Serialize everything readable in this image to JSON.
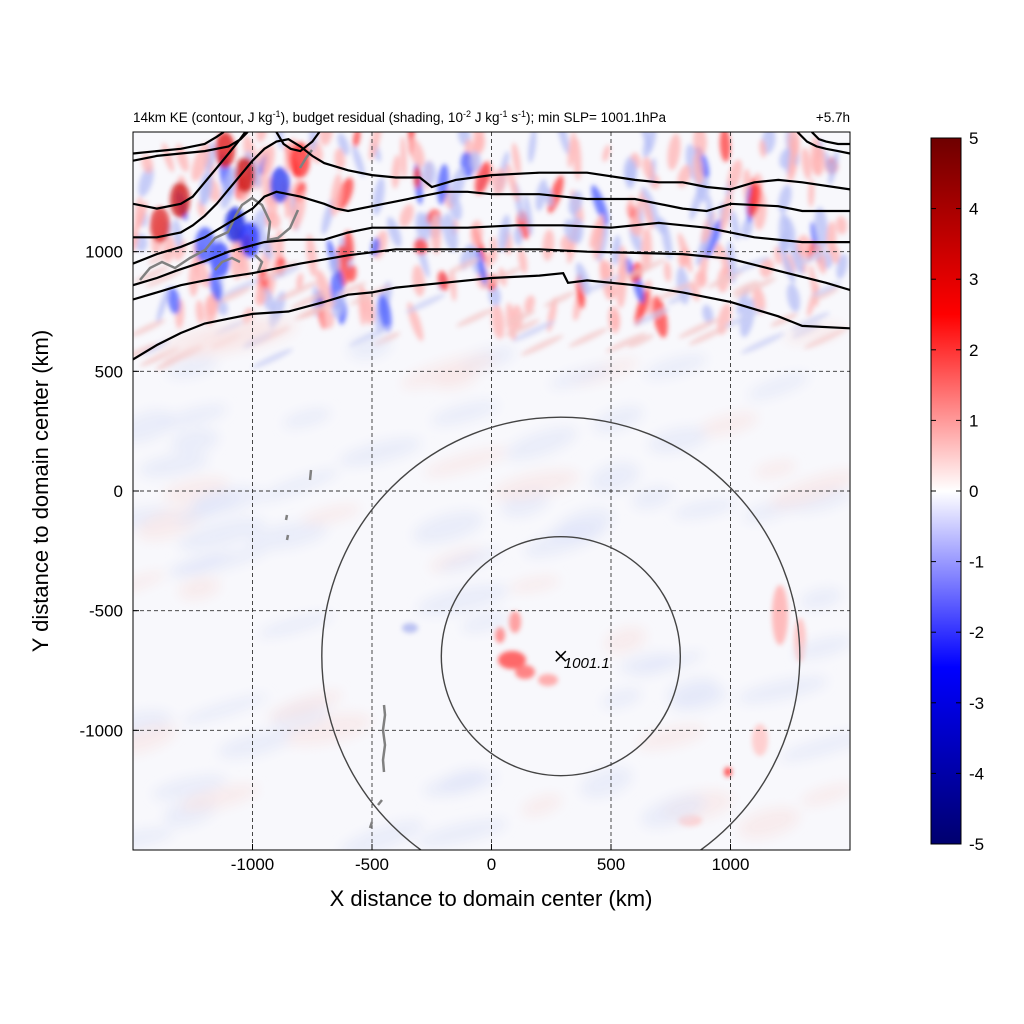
{
  "chart_data": {
    "type": "heatmap",
    "title_left": "14km KE (contour, J kg-1), budget residual (shading, 10-2 J kg-1 s-1); min SLP= 1001.1hPa",
    "title_parts": {
      "a": "14km KE (contour, J kg",
      "a_sup": "-1",
      "b": "), budget residual (shading, 10",
      "b_sup": "-2",
      "c": " J kg",
      "c_sup": "-1",
      "d": " s",
      "d_sup": "-1",
      "e": "); min SLP= 1001.1hPa"
    },
    "title_right": "+5.7h",
    "xlabel": "X distance to domain center (km)",
    "ylabel": "Y distance to domain center (km)",
    "xlim": [
      -1500,
      1500
    ],
    "ylim": [
      -1500,
      1500
    ],
    "xticks": [
      -1000,
      -500,
      0,
      500,
      1000
    ],
    "yticks": [
      -1000,
      -500,
      0,
      500,
      1000
    ],
    "grid": true,
    "colorbar": {
      "min": -5,
      "max": 5,
      "ticks": [
        5,
        4,
        3,
        2,
        1,
        0,
        -1,
        -2,
        -3,
        -4,
        -5
      ],
      "colors": [
        "#00006e",
        "#0000ff",
        "#ffffff",
        "#ff0000",
        "#6e0000"
      ]
    },
    "center_marker": {
      "x": 290,
      "y": -690,
      "label": "1001.1"
    },
    "range_rings_km": [
      500,
      1000
    ],
    "ke_contours": [
      [
        [
          -1500,
          550
        ],
        [
          -1400,
          610
        ],
        [
          -1300,
          660
        ],
        [
          -1200,
          700
        ],
        [
          -1100,
          720
        ],
        [
          -1000,
          740
        ],
        [
          -850,
          750
        ],
        [
          -700,
          790
        ],
        [
          -600,
          820
        ],
        [
          -500,
          830
        ],
        [
          -400,
          850
        ],
        [
          -200,
          870
        ],
        [
          0,
          890
        ],
        [
          200,
          900
        ],
        [
          300,
          910
        ],
        [
          320,
          870
        ],
        [
          400,
          880
        ],
        [
          600,
          860
        ],
        [
          800,
          830
        ],
        [
          1000,
          790
        ],
        [
          1200,
          730
        ],
        [
          1300,
          690
        ],
        [
          1500,
          680
        ]
      ],
      [
        [
          -1500,
          800
        ],
        [
          -1400,
          830
        ],
        [
          -1300,
          860
        ],
        [
          -1200,
          880
        ],
        [
          -1000,
          910
        ],
        [
          -800,
          950
        ],
        [
          -600,
          985
        ],
        [
          -400,
          1010
        ],
        [
          -200,
          1010
        ],
        [
          0,
          1010
        ],
        [
          200,
          1010
        ],
        [
          400,
          1000
        ],
        [
          600,
          995
        ],
        [
          800,
          990
        ],
        [
          1000,
          970
        ],
        [
          1200,
          920
        ],
        [
          1400,
          870
        ],
        [
          1500,
          840
        ]
      ],
      [
        [
          -1500,
          860
        ],
        [
          -1400,
          890
        ],
        [
          -1320,
          920
        ],
        [
          -1200,
          960
        ],
        [
          -1100,
          1000
        ],
        [
          -950,
          1040
        ],
        [
          -850,
          1050
        ],
        [
          -700,
          1050
        ],
        [
          -600,
          1080
        ],
        [
          -500,
          1100
        ],
        [
          -300,
          1100
        ],
        [
          -100,
          1100
        ],
        [
          100,
          1110
        ],
        [
          300,
          1110
        ],
        [
          500,
          1100
        ],
        [
          700,
          1120
        ],
        [
          900,
          1100
        ],
        [
          1100,
          1060
        ],
        [
          1300,
          1040
        ],
        [
          1500,
          1040
        ]
      ],
      [
        [
          -1500,
          950
        ],
        [
          -1400,
          990
        ],
        [
          -1300,
          1020
        ],
        [
          -1200,
          1060
        ],
        [
          -1100,
          1120
        ],
        [
          -1000,
          1180
        ],
        [
          -950,
          1230
        ],
        [
          -900,
          1250
        ],
        [
          -850,
          1240
        ],
        [
          -800,
          1230
        ],
        [
          -700,
          1200
        ],
        [
          -650,
          1180
        ],
        [
          -600,
          1170
        ],
        [
          -500,
          1190
        ],
        [
          -400,
          1210
        ],
        [
          -300,
          1230
        ],
        [
          -200,
          1250
        ],
        [
          -100,
          1250
        ],
        [
          0,
          1240
        ],
        [
          200,
          1240
        ],
        [
          400,
          1220
        ],
        [
          600,
          1220
        ],
        [
          800,
          1180
        ],
        [
          900,
          1170
        ],
        [
          1000,
          1200
        ],
        [
          1200,
          1190
        ],
        [
          1300,
          1170
        ],
        [
          1500,
          1170
        ]
      ],
      [
        [
          -1500,
          1060
        ],
        [
          -1400,
          1060
        ],
        [
          -1300,
          1080
        ],
        [
          -1250,
          1110
        ],
        [
          -1200,
          1150
        ],
        [
          -1150,
          1200
        ],
        [
          -1100,
          1260
        ],
        [
          -1050,
          1320
        ],
        [
          -1000,
          1380
        ],
        [
          -950,
          1430
        ],
        [
          -900,
          1460
        ],
        [
          -850,
          1470
        ],
        [
          -800,
          1440
        ],
        [
          -750,
          1400
        ],
        [
          -700,
          1370
        ],
        [
          -600,
          1340
        ],
        [
          -500,
          1320
        ],
        [
          -400,
          1310
        ],
        [
          -300,
          1310
        ],
        [
          -250,
          1270
        ],
        [
          -150,
          1300
        ],
        [
          0,
          1320
        ],
        [
          200,
          1330
        ],
        [
          400,
          1330
        ],
        [
          600,
          1300
        ],
        [
          700,
          1290
        ],
        [
          800,
          1290
        ],
        [
          900,
          1270
        ],
        [
          1000,
          1260
        ],
        [
          1100,
          1290
        ],
        [
          1200,
          1300
        ],
        [
          1300,
          1290
        ],
        [
          1500,
          1260
        ]
      ],
      [
        [
          -1500,
          1200
        ],
        [
          -1400,
          1180
        ],
        [
          -1300,
          1200
        ],
        [
          -1250,
          1230
        ],
        [
          -1200,
          1290
        ],
        [
          -1150,
          1350
        ],
        [
          -1100,
          1410
        ],
        [
          -1060,
          1460
        ],
        [
          -1030,
          1500
        ]
      ],
      [
        [
          -1500,
          1380
        ],
        [
          -1400,
          1400
        ],
        [
          -1300,
          1410
        ],
        [
          -1200,
          1420
        ],
        [
          -1100,
          1440
        ],
        [
          -1050,
          1470
        ],
        [
          -1020,
          1500
        ]
      ],
      [
        [
          -1500,
          1410
        ],
        [
          -1400,
          1420
        ],
        [
          -1300,
          1430
        ],
        [
          -1200,
          1450
        ],
        [
          -1150,
          1480
        ],
        [
          -1120,
          1500
        ]
      ],
      [
        [
          -900,
          1500
        ],
        [
          -870,
          1450
        ],
        [
          -840,
          1430
        ],
        [
          -800,
          1420
        ],
        [
          -750,
          1460
        ],
        [
          -720,
          1500
        ]
      ],
      [
        [
          1280,
          1500
        ],
        [
          1320,
          1460
        ],
        [
          1360,
          1440
        ],
        [
          1400,
          1430
        ],
        [
          1450,
          1420
        ],
        [
          1500,
          1410
        ]
      ],
      [
        [
          1340,
          1500
        ],
        [
          1370,
          1470
        ],
        [
          1400,
          1460
        ],
        [
          1450,
          1450
        ],
        [
          1500,
          1450
        ]
      ]
    ]
  }
}
